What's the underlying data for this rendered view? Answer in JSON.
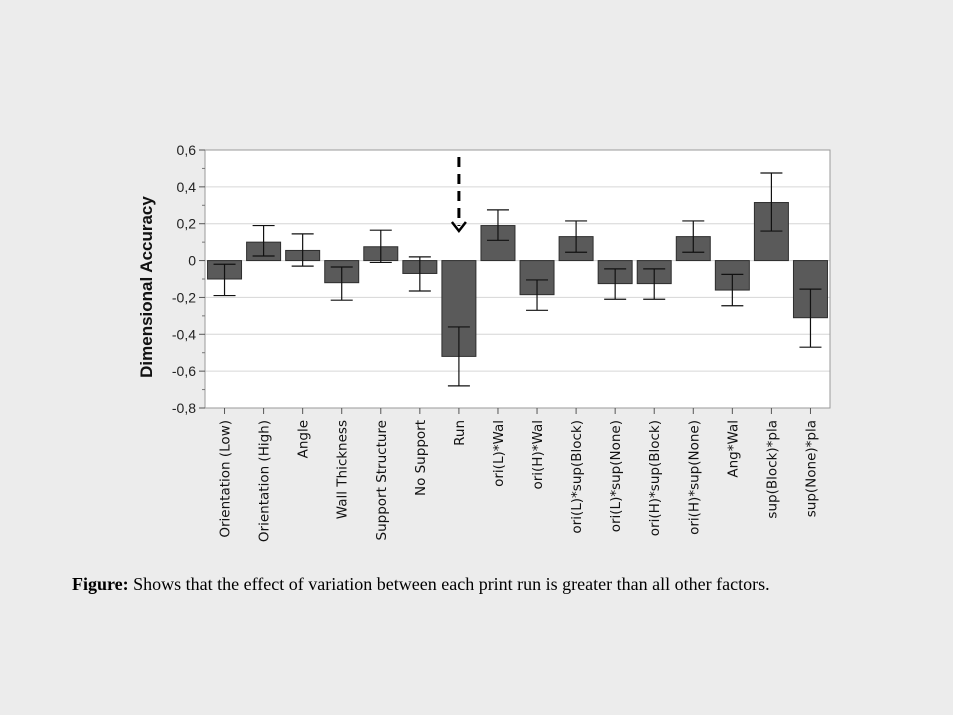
{
  "caption": {
    "label": "Figure:",
    "text": " Shows that the effect of variation between each print run is greater than all other factors."
  },
  "colors": {
    "bar": "#5a5a5a",
    "bar_stroke": "#2e2e2e",
    "grid": "#d6d6d6",
    "background": "#ececec",
    "plot_background": "#ffffff"
  },
  "chart_data": {
    "type": "bar",
    "title": "",
    "xlabel": "",
    "ylabel": "Dimensional Accuracy",
    "ylim": [
      -0.8,
      0.6
    ],
    "yticks": [
      -0.8,
      -0.6,
      -0.4,
      -0.2,
      0,
      0.2,
      0.4,
      0.6
    ],
    "ytick_labels": [
      "-0,8",
      "-0,6",
      "-0,4",
      "-0,2",
      "0",
      "0,2",
      "0,4",
      "0,6"
    ],
    "grid": true,
    "categories": [
      "Orientation (Low)",
      "Orientation (High)",
      "Angle",
      "Wall Thickness",
      "Support Structure",
      "No Support",
      "Run",
      "ori(L)*Wal",
      "ori(H)*Wal",
      "ori(L)*sup(Block)",
      "ori(L)*sup(None)",
      "ori(H)*sup(Block)",
      "ori(H)*sup(None)",
      "Ang*Wal",
      "sup(Block)*pla",
      "sup(None)*pla"
    ],
    "values": [
      -0.1,
      0.1,
      0.055,
      -0.12,
      0.075,
      -0.07,
      -0.52,
      0.19,
      -0.185,
      0.13,
      -0.125,
      -0.125,
      0.13,
      -0.16,
      0.315,
      -0.31
    ],
    "error_low": [
      -0.19,
      0.025,
      -0.03,
      -0.215,
      -0.01,
      -0.165,
      -0.68,
      0.11,
      -0.27,
      0.045,
      -0.21,
      -0.21,
      0.045,
      -0.245,
      0.16,
      -0.47
    ],
    "error_high": [
      -0.02,
      0.19,
      0.145,
      -0.035,
      0.165,
      0.02,
      -0.36,
      0.275,
      -0.105,
      0.215,
      -0.045,
      -0.045,
      0.215,
      -0.075,
      0.475,
      -0.155
    ],
    "annotation": {
      "type": "dashed-arrow",
      "target_category": "Run"
    }
  }
}
